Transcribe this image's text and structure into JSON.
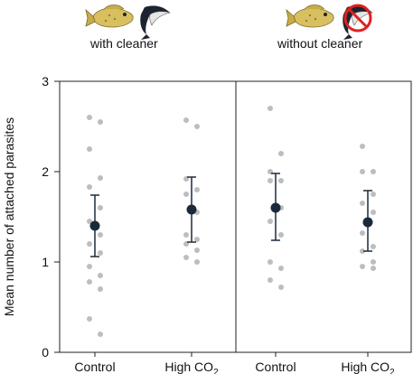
{
  "chart_data": {
    "type": "scatter",
    "ylabel": "Mean number of attached parasites",
    "ylim": [
      0,
      3
    ],
    "yticks": [
      "0",
      "1",
      "2",
      "3"
    ],
    "grid": false,
    "panels": [
      {
        "label": "with cleaner",
        "icons": [
          "fish-icon",
          "cleaner-wrasse-icon"
        ],
        "groups": [
          {
            "label": "Control",
            "points": [
              2.6,
              2.55,
              2.25,
              1.93,
              1.83,
              1.6,
              1.45,
              1.3,
              1.2,
              1.1,
              0.95,
              0.85,
              0.78,
              0.7,
              0.37,
              0.2
            ],
            "mean": 1.4,
            "err_low": 1.06,
            "err_high": 1.74
          },
          {
            "label": "High CO2",
            "points": [
              2.57,
              2.5,
              1.92,
              1.8,
              1.75,
              1.55,
              1.3,
              1.25,
              1.2,
              1.13,
              1.05,
              1.0
            ],
            "mean": 1.58,
            "err_low": 1.22,
            "err_high": 1.94
          }
        ]
      },
      {
        "label": "without cleaner",
        "icons": [
          "fish-icon",
          "cleaner-wrasse-crossed-icon"
        ],
        "groups": [
          {
            "label": "Control",
            "points": [
              2.7,
              2.2,
              2.0,
              1.9,
              1.9,
              1.6,
              1.45,
              1.3,
              1.0,
              0.93,
              0.8,
              0.72
            ],
            "mean": 1.6,
            "err_low": 1.24,
            "err_high": 1.98
          },
          {
            "label": "High CO2",
            "points": [
              2.28,
              2.0,
              2.0,
              1.75,
              1.65,
              1.55,
              1.32,
              1.17,
              1.12,
              1.0,
              0.95,
              0.93
            ],
            "mean": 1.44,
            "err_low": 1.12,
            "err_high": 1.79
          }
        ]
      }
    ],
    "colors": {
      "points": "#bdbdbd",
      "mean": "#1b2a3b",
      "axis": "#222222"
    }
  }
}
